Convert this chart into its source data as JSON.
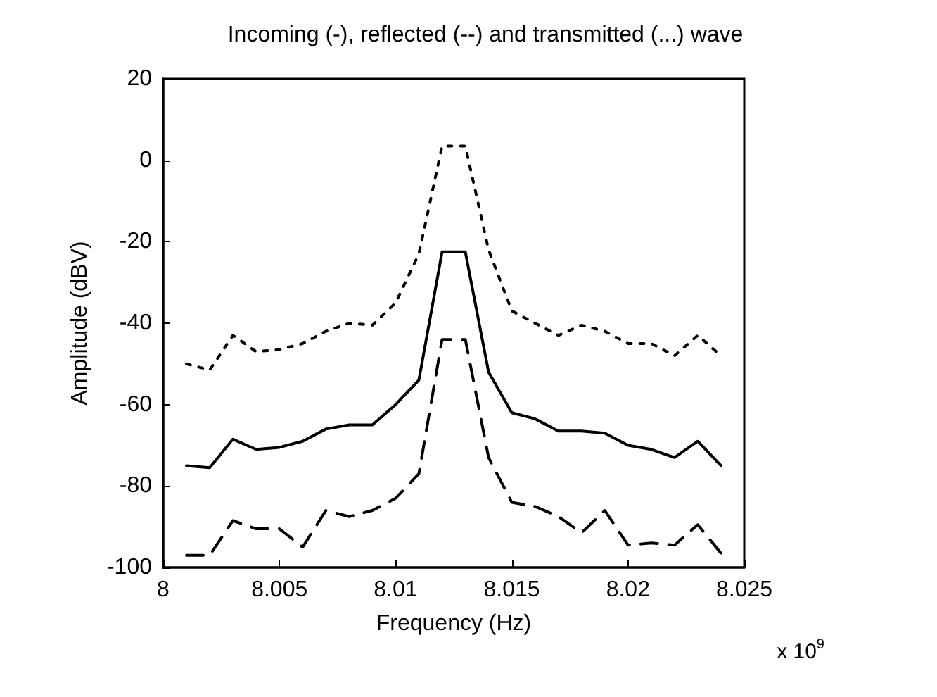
{
  "chart_data": {
    "type": "line",
    "title": "Incoming (-), reflected (--) and transmitted (...) wave",
    "xlabel": "Frequency (Hz)",
    "ylabel": "Amplitude (dBV)",
    "annotations": [
      "x 10$^{9}$"
    ],
    "x": [
      8.001,
      8.002,
      8.003,
      8.004,
      8.005,
      8.006,
      8.007,
      8.008,
      8.009,
      8.01,
      8.011,
      8.012,
      8.013,
      8.014,
      8.015,
      8.016,
      8.017,
      8.018,
      8.019,
      8.02,
      8.021,
      8.022,
      8.023,
      8.024
    ],
    "series": [
      {
        "color": "#000000",
        "line_style": "solid",
        "values": [
          -75,
          -75.5,
          -68.5,
          -71,
          -70.5,
          -69,
          -66,
          -65,
          -65,
          -60,
          -54,
          -22.5,
          -22.5,
          -52,
          -62,
          -63.5,
          -66.5,
          -66.5,
          -67,
          -70,
          -71,
          -73,
          -69,
          -75
        ]
      },
      {
        "color": "#000000",
        "line_style": "dashed",
        "values": [
          -97,
          -97,
          -88.5,
          -90.5,
          -90.5,
          -95,
          -86,
          -87.5,
          -86,
          -83,
          -77,
          -44,
          -44,
          -73,
          -84,
          -85,
          -87.5,
          -91.5,
          -86,
          -94.5,
          -94,
          -94.5,
          -89.5,
          -96.5
        ]
      },
      {
        "color": "#000000",
        "line_style": "dotted",
        "values": [
          -50,
          -51.5,
          -43,
          -47,
          -46.5,
          -45,
          -42,
          -40,
          -40.5,
          -35,
          -23,
          3.5,
          3.5,
          -22,
          -37,
          -40,
          -43,
          -40.5,
          -42,
          -45,
          -45,
          -48,
          -43,
          -48
        ]
      }
    ],
    "xlim": [
      8,
      8.025
    ],
    "xticks": [
      8,
      8.005,
      8.01,
      8.015,
      8.02,
      8.025
    ],
    "ylim": [
      -100,
      20
    ],
    "yticks": [
      -100,
      -80,
      -60,
      -40,
      -20,
      0,
      20
    ],
    "grid": false,
    "marker": "none"
  }
}
